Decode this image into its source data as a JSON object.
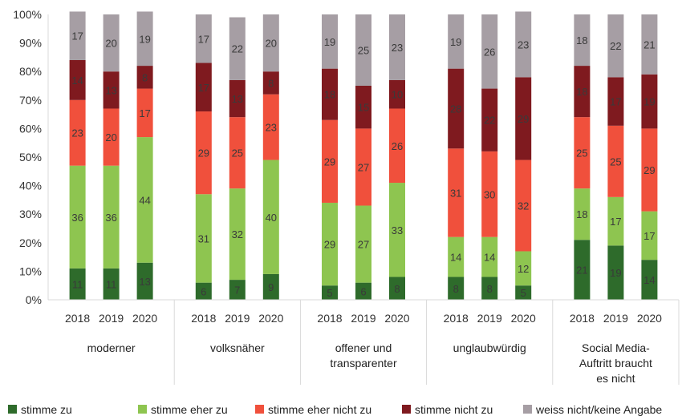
{
  "chart_data": {
    "type": "bar",
    "stacked": true,
    "ylim": [
      0,
      100
    ],
    "y_ticks": [
      "0%",
      "10%",
      "20%",
      "30%",
      "40%",
      "50%",
      "60%",
      "70%",
      "80%",
      "90%",
      "100%"
    ],
    "grid": false,
    "legend_position": "bottom",
    "groups": [
      {
        "label": [
          "moderner"
        ],
        "years": [
          "2018",
          "2019",
          "2020"
        ]
      },
      {
        "label": [
          "volksnäher"
        ],
        "years": [
          "2018",
          "2019",
          "2020"
        ]
      },
      {
        "label": [
          "offener und",
          "transparenter"
        ],
        "years": [
          "2018",
          "2019",
          "2020"
        ]
      },
      {
        "label": [
          "unglaubwürdig"
        ],
        "years": [
          "2018",
          "2019",
          "2020"
        ]
      },
      {
        "label": [
          "Social Media-",
          "Auftritt braucht",
          "es nicht"
        ],
        "years": [
          "2018",
          "2019",
          "2020"
        ]
      }
    ],
    "series": [
      {
        "name": "stimme zu",
        "color": "#2e6b2b",
        "values": [
          11,
          11,
          13,
          6,
          7,
          9,
          5,
          6,
          8,
          8,
          8,
          5,
          21,
          19,
          14
        ]
      },
      {
        "name": "stimme eher zu",
        "color": "#8ec550",
        "values": [
          36,
          36,
          44,
          31,
          32,
          40,
          29,
          27,
          33,
          14,
          14,
          12,
          18,
          17,
          17
        ]
      },
      {
        "name": "stimme eher nicht zu",
        "color": "#f0503c",
        "values": [
          23,
          20,
          17,
          29,
          25,
          23,
          29,
          27,
          26,
          31,
          30,
          32,
          25,
          25,
          29
        ]
      },
      {
        "name": "stimme nicht zu",
        "color": "#7f1a1f",
        "values": [
          14,
          13,
          8,
          17,
          13,
          8,
          18,
          15,
          10,
          28,
          22,
          29,
          18,
          17,
          19
        ]
      },
      {
        "name": "weiss nicht/keine Angabe",
        "color": "#a69ea4",
        "values": [
          17,
          20,
          19,
          17,
          22,
          20,
          19,
          25,
          23,
          19,
          26,
          23,
          18,
          22,
          21
        ]
      }
    ]
  }
}
